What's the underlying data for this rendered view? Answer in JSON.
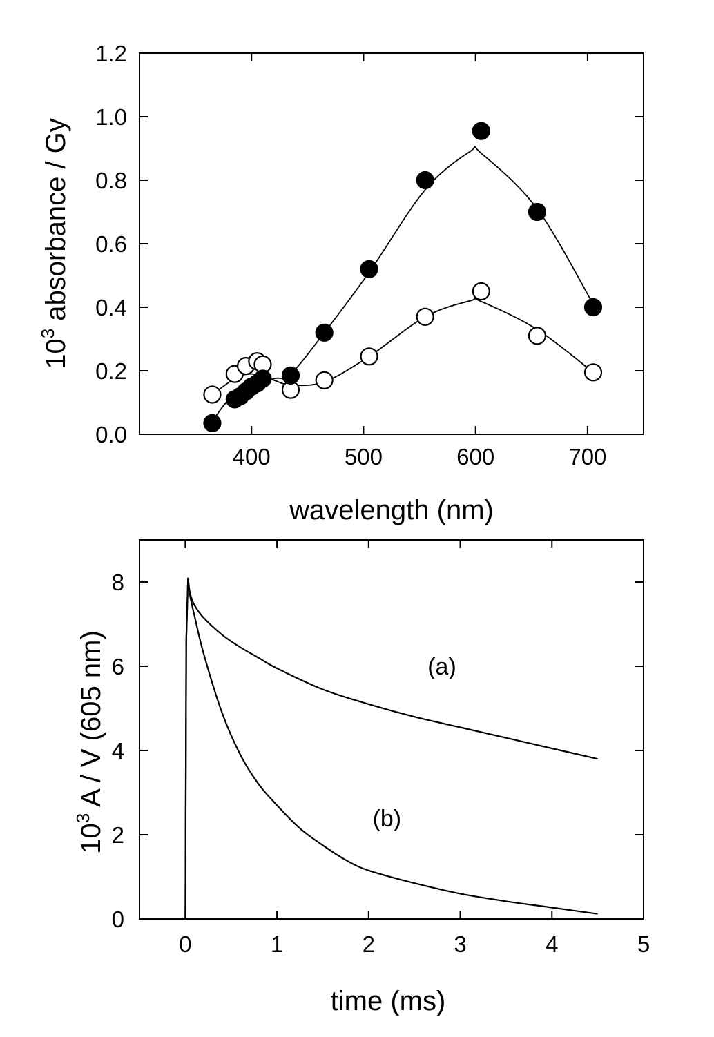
{
  "chart_data": [
    {
      "type": "scatter",
      "xlabel": "wavelength (nm)",
      "ylabel_base": "10",
      "ylabel_exp": "3",
      "ylabel_rest": " absorbance / Gy",
      "xlim": [
        300,
        750
      ],
      "ylim": [
        0.0,
        1.2
      ],
      "xticks": [
        400,
        500,
        600,
        700
      ],
      "xtick_labels": [
        "400",
        "500",
        "600",
        "700"
      ],
      "yticks": [
        0.0,
        0.2,
        0.4,
        0.6,
        0.8,
        1.0,
        1.2
      ],
      "ytick_labels": [
        "0.0",
        "0.2",
        "0.4",
        "0.6",
        "0.8",
        "1.0",
        "1.2"
      ],
      "grid": false,
      "series": [
        {
          "marker": "filled-circle",
          "x": [
            365,
            385,
            390,
            395,
            400,
            405,
            410,
            435,
            465,
            505,
            555,
            605,
            655,
            705
          ],
          "y": [
            0.035,
            0.11,
            0.12,
            0.135,
            0.15,
            0.16,
            0.175,
            0.185,
            0.32,
            0.52,
            0.8,
            0.955,
            0.7,
            0.4
          ],
          "fit_x": [
            365,
            380,
            400,
            420,
            435,
            465,
            505,
            555,
            595,
            605,
            655,
            705
          ],
          "fit_y": [
            0.04,
            0.11,
            0.15,
            0.175,
            0.19,
            0.32,
            0.51,
            0.77,
            0.89,
            0.885,
            0.71,
            0.41
          ]
        },
        {
          "marker": "open-circle",
          "x": [
            365,
            385,
            395,
            405,
            410,
            435,
            465,
            505,
            555,
            605,
            655,
            705
          ],
          "y": [
            0.125,
            0.19,
            0.215,
            0.23,
            0.22,
            0.14,
            0.17,
            0.245,
            0.37,
            0.45,
            0.31,
            0.195
          ],
          "fit_x": [
            365,
            385,
            400,
            420,
            435,
            465,
            505,
            555,
            595,
            605,
            655,
            705
          ],
          "fit_y": [
            0.125,
            0.175,
            0.19,
            0.17,
            0.155,
            0.165,
            0.245,
            0.37,
            0.42,
            0.418,
            0.33,
            0.195
          ]
        }
      ]
    },
    {
      "type": "line",
      "xlabel": "time (ms)",
      "ylabel_base": "10",
      "ylabel_exp": "3",
      "ylabel_rest": " A / V (605 nm)",
      "xlim": [
        -0.5,
        5
      ],
      "ylim": [
        0,
        9
      ],
      "xticks": [
        0,
        1,
        2,
        3,
        4,
        5
      ],
      "xtick_labels": [
        "0",
        "1",
        "2",
        "3",
        "4",
        "5"
      ],
      "yticks": [
        0,
        2,
        4,
        6,
        8
      ],
      "ytick_labels": [
        "0",
        "2",
        "4",
        "6",
        "8"
      ],
      "grid": false,
      "annotations": [
        {
          "text": "(a)",
          "x": 2.8,
          "y": 5.8
        },
        {
          "text": "(b)",
          "x": 2.2,
          "y": 2.2
        }
      ],
      "series": [
        {
          "label": "(a)",
          "x": [
            0,
            0.01,
            0.03,
            0.05,
            0.1,
            0.2,
            0.4,
            0.6,
            0.8,
            1.0,
            1.5,
            2.0,
            2.5,
            3.0,
            3.5,
            4.0,
            4.5
          ],
          "y": [
            0,
            6.6,
            8.1,
            7.75,
            7.45,
            7.15,
            6.75,
            6.45,
            6.2,
            5.95,
            5.45,
            5.1,
            4.8,
            4.55,
            4.3,
            4.05,
            3.8
          ]
        },
        {
          "label": "(b)",
          "x": [
            0,
            0.01,
            0.03,
            0.05,
            0.1,
            0.2,
            0.4,
            0.6,
            0.8,
            1.0,
            1.25,
            1.5,
            1.75,
            2.0,
            2.5,
            3.0,
            3.5,
            4.0,
            4.5
          ],
          "y": [
            0,
            6.6,
            8.1,
            7.7,
            7.2,
            6.3,
            4.9,
            3.9,
            3.2,
            2.7,
            2.15,
            1.75,
            1.4,
            1.15,
            0.85,
            0.6,
            0.42,
            0.27,
            0.12
          ]
        }
      ]
    }
  ]
}
